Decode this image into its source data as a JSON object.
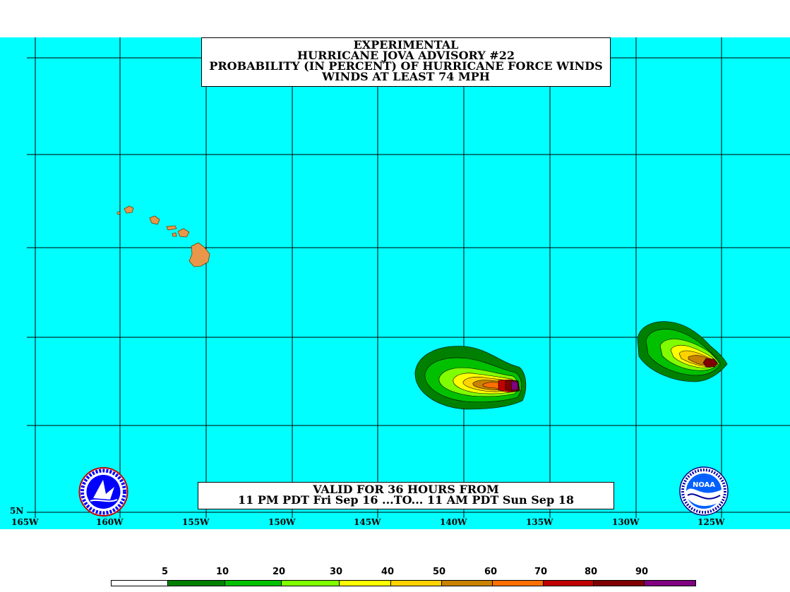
{
  "title": {
    "lines": [
      "EXPERIMENTAL",
      "HURRICANE JOVA ADVISORY #22",
      "PROBABILITY (IN PERCENT) OF HURRICANE FORCE WINDS",
      "WINDS AT LEAST 74 MPH"
    ]
  },
  "valid": {
    "lines": [
      "VALID FOR 36 HOURS FROM",
      "11 PM PDT Fri Sep 16 ...TO... 11 AM PDT Sun Sep 18"
    ]
  },
  "axis": {
    "lon_labels": [
      "165W",
      "160W",
      "155W",
      "150W",
      "145W",
      "140W",
      "135W",
      "130W",
      "125W"
    ],
    "lat_label": "5N"
  },
  "legend": {
    "labels": [
      "5",
      "10",
      "20",
      "30",
      "40",
      "50",
      "60",
      "70",
      "80",
      "90"
    ],
    "colors": [
      "#ffffff",
      "#008000",
      "#00c000",
      "#80ff00",
      "#ffff00",
      "#ffd200",
      "#c88200",
      "#ff7000",
      "#c00000",
      "#800000",
      "#800080"
    ]
  },
  "colors": {
    "ocean": "#00ffff",
    "land": "#e8974a",
    "grid": "#000000"
  },
  "logos": {
    "left": "nws-logo",
    "right": "noaa-logo",
    "right_text": "NOAA"
  }
}
